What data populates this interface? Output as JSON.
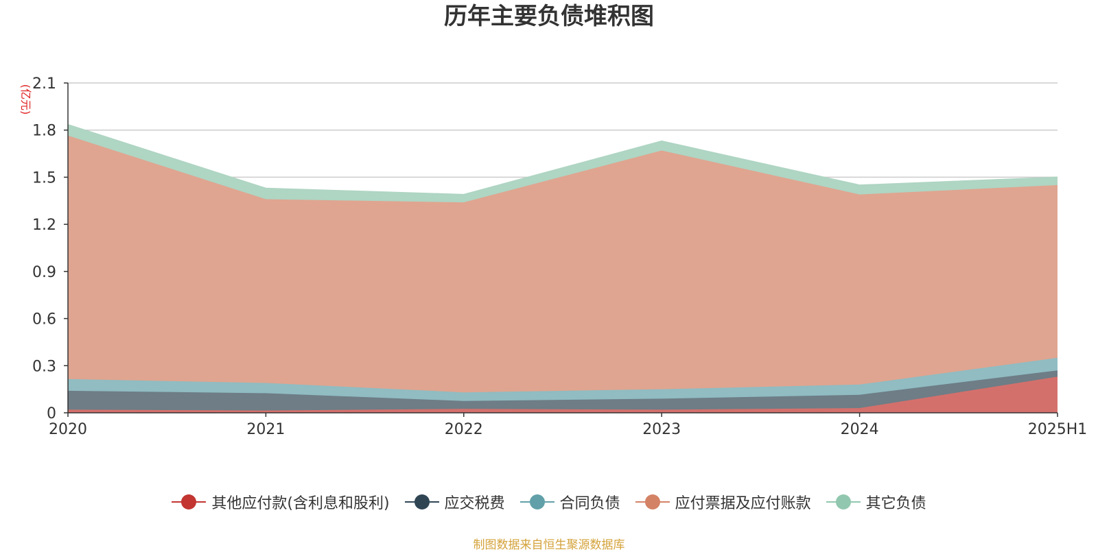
{
  "chart_data": {
    "type": "area",
    "stacked": true,
    "title": "历年主要负债堆积图",
    "y_unit": "(亿元)",
    "categories": [
      "2020",
      "2021",
      "2022",
      "2023",
      "2024",
      "2025H1"
    ],
    "ylim": [
      0,
      2.1
    ],
    "yticks": [
      0,
      0.3,
      0.6,
      0.9,
      1.2,
      1.5,
      1.8,
      2.1
    ],
    "ytick_labels": [
      "0",
      "0.3",
      "0.6",
      "0.9",
      "1.2",
      "1.5",
      "1.8",
      "2.1"
    ],
    "grid": true,
    "legend_position": "bottom",
    "series": [
      {
        "name": "其他应付款(含利息和股利)",
        "color": "#c23531",
        "fill": "#d4706c",
        "values": [
          0.02,
          0.015,
          0.025,
          0.02,
          0.03,
          0.23
        ]
      },
      {
        "name": "应交税费",
        "color": "#2f4554",
        "fill": "#6e7d86",
        "values": [
          0.12,
          0.11,
          0.05,
          0.07,
          0.085,
          0.04
        ]
      },
      {
        "name": "合同负债",
        "color": "#61a0a8",
        "fill": "#90bcc2",
        "values": [
          0.075,
          0.065,
          0.055,
          0.06,
          0.065,
          0.08
        ]
      },
      {
        "name": "应付票据及应付账款",
        "color": "#d48265",
        "fill": "#dfa590",
        "values": [
          1.55,
          1.17,
          1.21,
          1.52,
          1.21,
          1.1
        ]
      },
      {
        "name": "其它负债",
        "color": "#91c7ae",
        "fill": "#afd5c3",
        "values": [
          0.07,
          0.07,
          0.05,
          0.06,
          0.06,
          0.05
        ]
      }
    ]
  },
  "source_note": "制图数据来自恒生聚源数据库"
}
